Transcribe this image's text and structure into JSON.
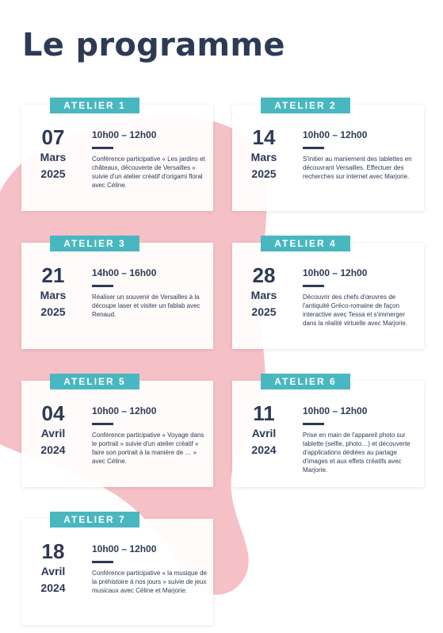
{
  "page_title": "Le programme",
  "colors": {
    "accent": "#49b7c0",
    "text": "#2d3a56",
    "blob": "#f5c0c6"
  },
  "ateliers": [
    {
      "label": "ATELIER 1",
      "day": "07",
      "month": "Mars",
      "year": "2025",
      "time": "10h00 – 12h00",
      "description": "Conférence participative « Les jardins et châteaux, découverte de Versailles » suivie d'un atelier créatif d'origami floral avec Céline."
    },
    {
      "label": "ATELIER 2",
      "day": "14",
      "month": "Mars",
      "year": "2025",
      "time": "10h00 – 12h00",
      "description": "S'initier au maniement des tablettes en découvrant Versailles. Effectuer des recherches sur internet avec Marjorie."
    },
    {
      "label": "ATELIER 3",
      "day": "21",
      "month": "Mars",
      "year": "2025",
      "time": "14h00 – 16h00",
      "description": "Réaliser un souvenir de Versailles à la découpe laser et visiter un fablab avec Renaud."
    },
    {
      "label": "ATELIER 4",
      "day": "28",
      "month": "Mars",
      "year": "2025",
      "time": "10h00 – 12h00",
      "description": "Découvrir des chefs d'œuvres de l'antiquité Gréco-romaine de façon interactive avec Tessa et s'immerger dans la réalité virtuelle avec Marjorie."
    },
    {
      "label": "ATELIER 5",
      "day": "04",
      "month": "Avril",
      "year": "2024",
      "time": "10h00 – 12h00",
      "description": "Conférence participative « Voyage dans le portrait » suivie d'un atelier créatif « faire son portrait à la manière de … » avec Céline."
    },
    {
      "label": "ATELIER 6",
      "day": "11",
      "month": "Avril",
      "year": "2024",
      "time": "10h00 – 12h00",
      "description": "Prise en main de l'appareil photo sur tablette (selfie, photo…) et découverte d'applications dédiées au partage d'images et aux effets créatifs avec Marjorie."
    },
    {
      "label": "ATELIER 7",
      "day": "18",
      "month": "Avril",
      "year": "2024",
      "time": "10h00 – 12h00",
      "description": "Conférence participative « la musique de la préhistoire à nos jours » suivie de jeux musicaux avec Céline et Marjorie."
    }
  ]
}
